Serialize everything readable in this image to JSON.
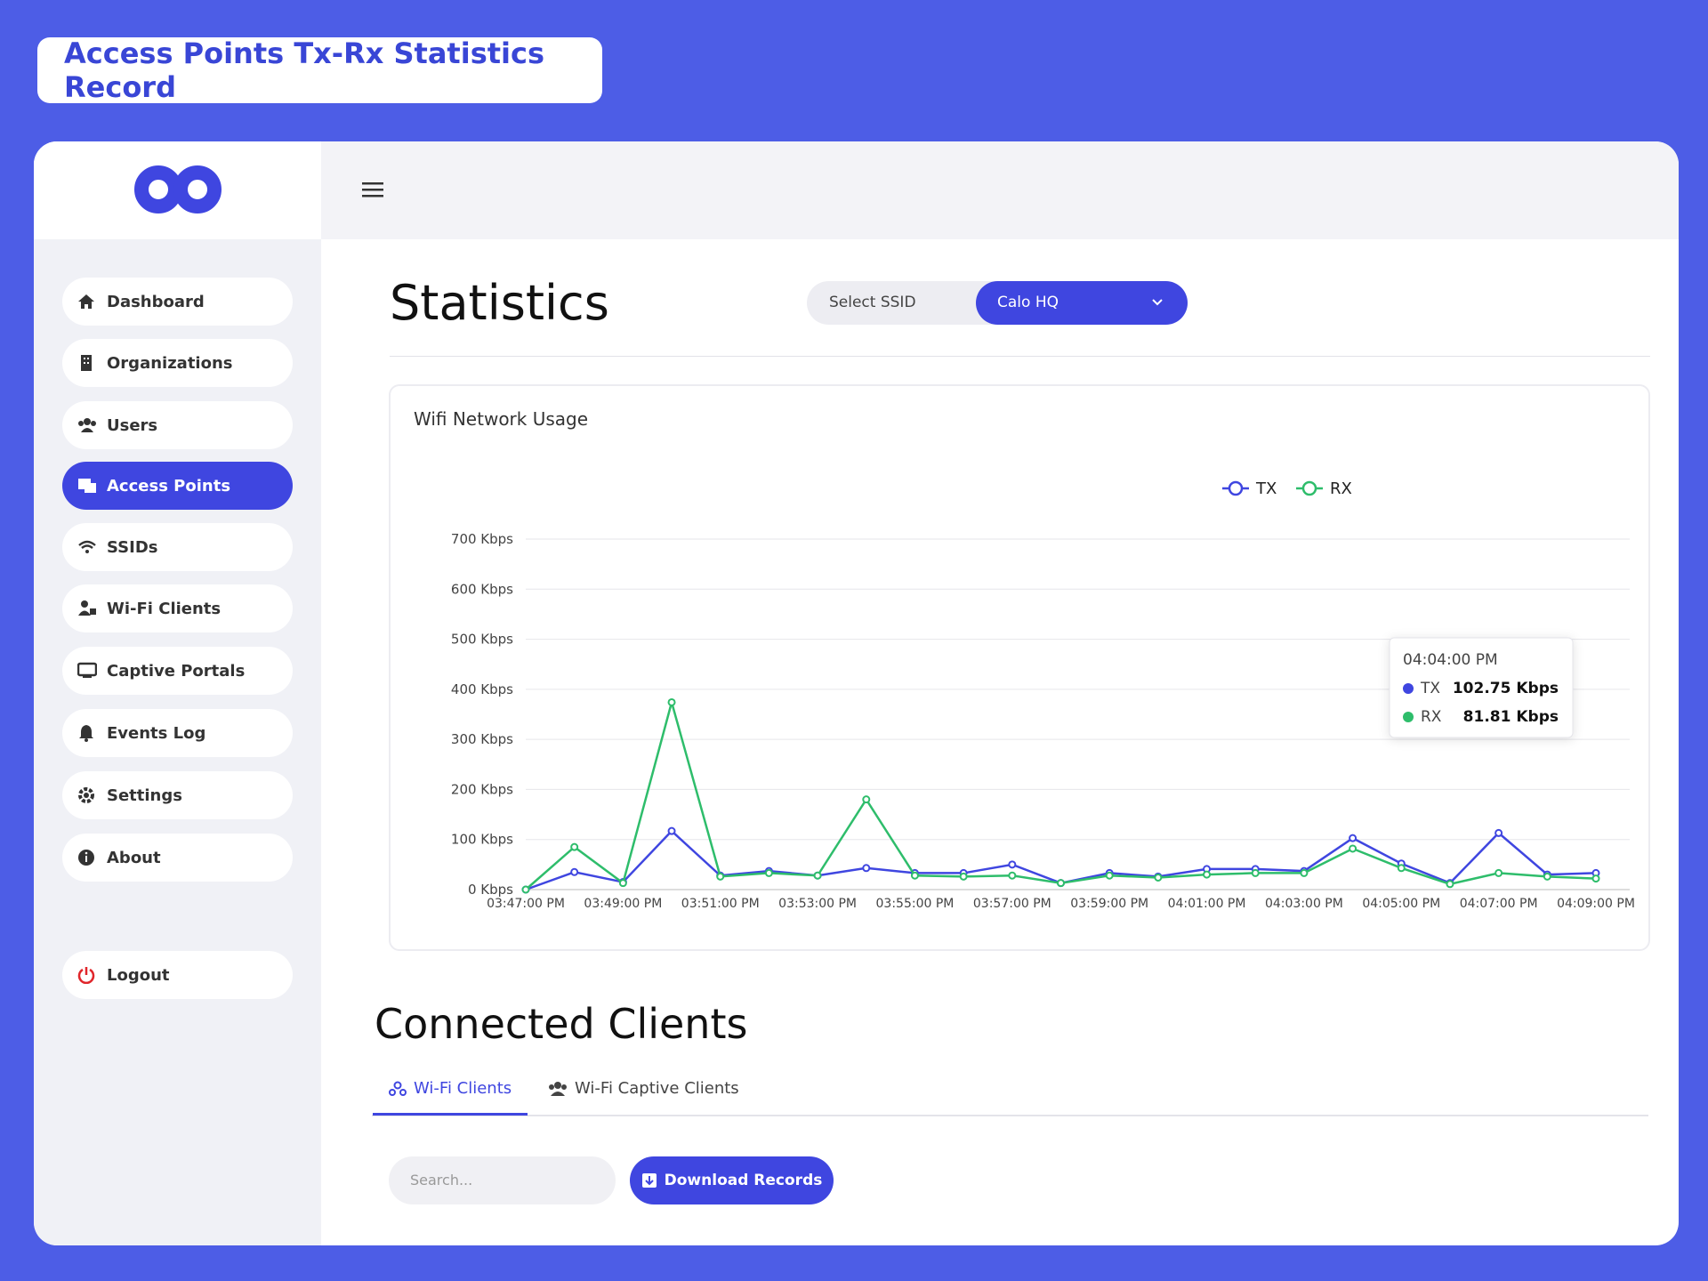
{
  "header": {
    "title": "Access Points Tx-Rx Statistics Record"
  },
  "sidebar": {
    "nav": [
      "Dashboard",
      "Organizations",
      "Users",
      "Access Points",
      "SSIDs",
      "Wi-Fi Clients",
      "Captive Portals",
      "Events Log",
      "Settings",
      "About"
    ],
    "active": 3,
    "logout": "Logout"
  },
  "page": {
    "title": "Statistics",
    "ssid_label": "Select SSID",
    "ssid_value": "Calo HQ"
  },
  "chart_data": {
    "type": "line",
    "title": "Wifi Network Usage",
    "categories": [
      "03:47:00 PM",
      null,
      "03:49:00 PM",
      null,
      "03:51:00 PM",
      null,
      "03:53:00 PM",
      null,
      "03:55:00 PM",
      null,
      "03:57:00 PM",
      null,
      "03:59:00 PM",
      null,
      "04:01:00 PM",
      null,
      "04:03:00 PM",
      null,
      "04:05:00 PM",
      null,
      "04:07:00 PM",
      null,
      "04:09:00 PM"
    ],
    "series": [
      {
        "name": "TX",
        "color": "#3f46e0",
        "values": [
          0,
          35,
          15,
          117,
          28,
          37,
          28,
          43,
          33,
          33,
          50,
          13,
          33,
          26,
          41,
          41,
          37,
          102.75,
          52,
          13,
          113,
          30,
          33
        ]
      },
      {
        "name": "RX",
        "color": "#2ebd6b",
        "values": [
          0,
          85,
          13,
          374,
          26,
          33,
          28,
          180,
          28,
          26,
          28,
          13,
          28,
          24,
          30,
          33,
          33,
          81.81,
          43,
          11,
          33,
          26,
          22
        ]
      }
    ],
    "ylim": [
      0,
      700
    ],
    "yticks": [
      {
        "value": 0,
        "label": "0 Kbps"
      },
      {
        "value": 100,
        "label": "100 Kbps"
      },
      {
        "value": 200,
        "label": "200 Kbps"
      },
      {
        "value": 300,
        "label": "300 Kbps"
      },
      {
        "value": 400,
        "label": "400 Kbps"
      },
      {
        "value": 500,
        "label": "500 Kbps"
      },
      {
        "value": 600,
        "label": "600 Kbps"
      },
      {
        "value": 700,
        "label": "700 Kbps"
      }
    ],
    "grid": true,
    "legend": "top",
    "tooltip": {
      "title": "04:04:00 PM",
      "labels": [
        "102.75 Kbps",
        "81.81 Kbps"
      ]
    }
  },
  "clients": {
    "title": "Connected Clients",
    "tabs": [
      "Wi-Fi Clients",
      "Wi-Fi Captive Clients"
    ],
    "active_tab": 0,
    "search_placeholder": "Search...",
    "download": "Download Records"
  }
}
